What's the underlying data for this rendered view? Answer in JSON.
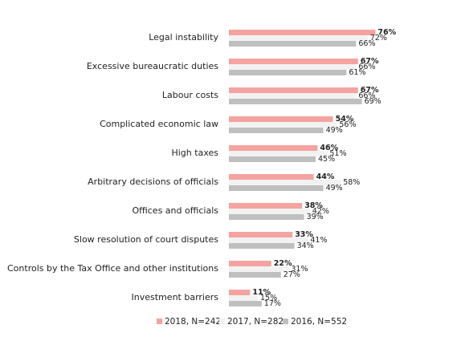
{
  "chart_data": {
    "type": "bar",
    "orientation": "horizontal",
    "categories": [
      "Legal instability",
      "Excessive bureaucratic duties",
      "Labour costs",
      "Complicated economic law",
      "High taxes",
      "Arbitrary decisions of officials",
      "Offices and officials",
      "Slow resolution of court disputes",
      "Controls by the Tax Office and other institutions",
      "Investment barriers"
    ],
    "series": [
      {
        "name": "2018, N=242",
        "color": "#f4a3a0",
        "bold_labels": true,
        "values": [
          76,
          67,
          67,
          54,
          46,
          44,
          38,
          33,
          22,
          11
        ],
        "value_labels": [
          "76%",
          "67%",
          "67%",
          "54%",
          "46%",
          "44%",
          "38%",
          "33%",
          "22%",
          "11%"
        ]
      },
      {
        "name": "2017, N=282",
        "color": "#f2f2f2",
        "bold_labels": false,
        "values": [
          72,
          66,
          66,
          56,
          51,
          58,
          42,
          41,
          31,
          15
        ],
        "value_labels": [
          "72%",
          "66%",
          "66%",
          "56%",
          "51%",
          "58%",
          "42%",
          "41%",
          "31%",
          "15%"
        ]
      },
      {
        "name": "2016, N=552",
        "color": "#bfbfbf",
        "bold_labels": false,
        "values": [
          66,
          61,
          69,
          49,
          45,
          49,
          39,
          34,
          27,
          17
        ],
        "value_labels": [
          "66%",
          "61%",
          "69%",
          "49%",
          "45%",
          "49%",
          "39%",
          "34%",
          "27%",
          "17%"
        ]
      }
    ],
    "legend": "bottom"
  }
}
